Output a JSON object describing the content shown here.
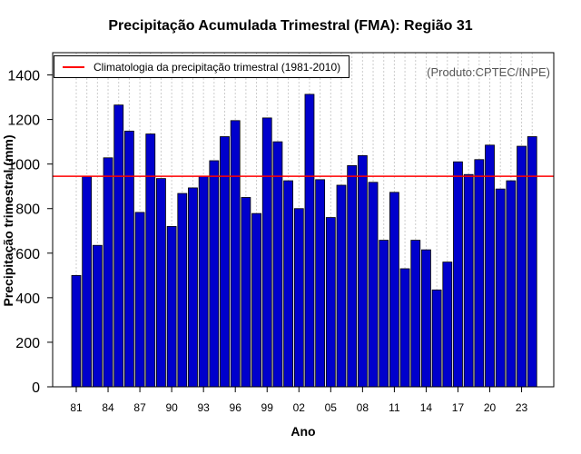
{
  "chart_data": {
    "type": "bar",
    "title": "Precipitação Acumulada Trimestral (FMA): Região 31",
    "xlabel": "Ano",
    "ylabel": "Precipitação trimestral (mm)",
    "source_note": "(Produto:CPTEC/INPE)",
    "ylim": [
      0,
      1500
    ],
    "yticks": [
      0,
      200,
      400,
      600,
      800,
      1000,
      1200,
      1400
    ],
    "x_tick_labels": [
      "81",
      "84",
      "87",
      "90",
      "93",
      "96",
      "99",
      "02",
      "05",
      "08",
      "11",
      "14",
      "17",
      "20",
      "23"
    ],
    "years": [
      1981,
      1982,
      1983,
      1984,
      1985,
      1986,
      1987,
      1988,
      1989,
      1990,
      1991,
      1992,
      1993,
      1994,
      1995,
      1996,
      1997,
      1998,
      1999,
      2000,
      2001,
      2002,
      2003,
      2004,
      2005,
      2006,
      2007,
      2008,
      2009,
      2010,
      2011,
      2012,
      2013,
      2014,
      2015,
      2016,
      2017,
      2018,
      2019,
      2020,
      2021,
      2022,
      2023,
      2024
    ],
    "values": [
      500,
      945,
      635,
      1028,
      1265,
      1148,
      783,
      1135,
      935,
      720,
      868,
      893,
      945,
      1015,
      1123,
      1195,
      850,
      778,
      1207,
      1100,
      925,
      800,
      1313,
      930,
      760,
      905,
      993,
      1038,
      918,
      658,
      873,
      530,
      658,
      615,
      435,
      560,
      1010,
      953,
      1020,
      1085,
      888,
      925,
      1080,
      1123
    ],
    "climatology": {
      "label": "Climatologia da precipitação trimestral (1981-2010)",
      "value": 945,
      "color": "#ff0000"
    },
    "bar_color": "#0000cc",
    "grid": true,
    "legend_position": "top-left"
  }
}
